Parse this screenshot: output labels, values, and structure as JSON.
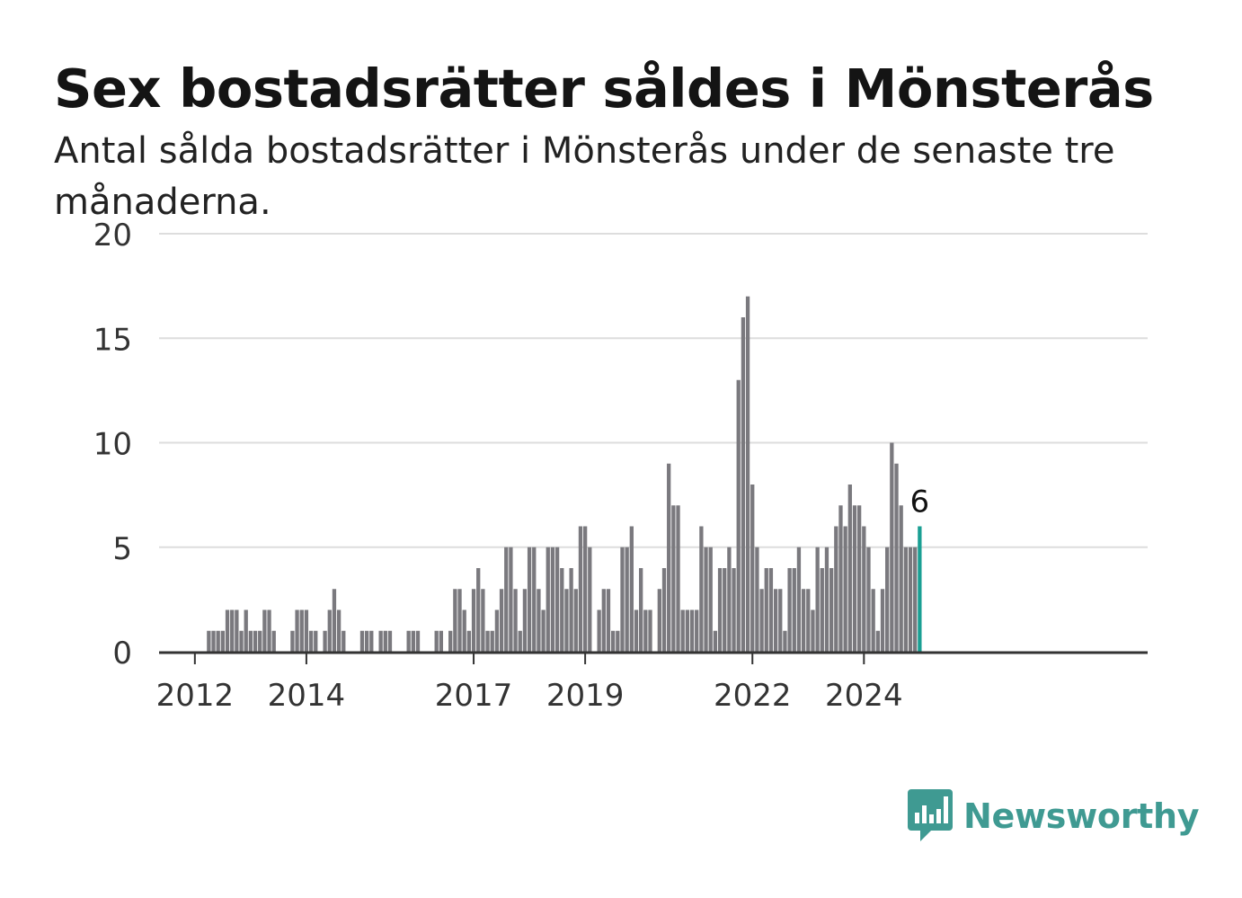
{
  "title": "Sex bostadsrätter såldes i Mönsterås",
  "subtitle": "Antal sålda bostadsrätter i Mönsterås under de senaste tre månaderna.",
  "brand": {
    "name": "Newsworthy",
    "color": "#3f9a92",
    "icon": "newsworthy-logo-icon"
  },
  "colors": {
    "bar": "#7a797e",
    "highlight": "#1a9f93",
    "grid": "#dddddd",
    "axis": "#333333",
    "text": "#333333"
  },
  "chart_data": {
    "type": "bar",
    "ylim": [
      0,
      20
    ],
    "yticks": [
      0,
      5,
      10,
      15,
      20
    ],
    "xticks": [
      {
        "label": "2012",
        "index": 7
      },
      {
        "label": "2014",
        "index": 31
      },
      {
        "label": "2017",
        "index": 67
      },
      {
        "label": "2019",
        "index": 91
      },
      {
        "label": "2022",
        "index": 127
      },
      {
        "label": "2024",
        "index": 151
      }
    ],
    "grid": true,
    "values": [
      0,
      0,
      0,
      0,
      0,
      0,
      0,
      0,
      0,
      0,
      1,
      1,
      1,
      1,
      2,
      2,
      2,
      1,
      2,
      1,
      1,
      1,
      2,
      2,
      1,
      0,
      0,
      0,
      1,
      2,
      2,
      2,
      1,
      1,
      0,
      1,
      2,
      3,
      2,
      1,
      0,
      0,
      0,
      1,
      1,
      1,
      0,
      1,
      1,
      1,
      0,
      0,
      0,
      1,
      1,
      1,
      0,
      0,
      0,
      1,
      1,
      0,
      1,
      3,
      3,
      2,
      1,
      3,
      4,
      3,
      1,
      1,
      2,
      3,
      5,
      5,
      3,
      1,
      3,
      5,
      5,
      3,
      2,
      5,
      5,
      5,
      4,
      3,
      4,
      3,
      6,
      6,
      5,
      0,
      2,
      3,
      3,
      1,
      1,
      5,
      5,
      6,
      2,
      4,
      2,
      2,
      0,
      3,
      4,
      9,
      7,
      7,
      2,
      2,
      2,
      2,
      6,
      5,
      5,
      1,
      4,
      4,
      5,
      4,
      13,
      16,
      17,
      8,
      5,
      3,
      4,
      4,
      3,
      3,
      1,
      4,
      4,
      5,
      3,
      3,
      2,
      5,
      4,
      5,
      4,
      6,
      7,
      6,
      8,
      7,
      7,
      6,
      5,
      3,
      1,
      3,
      5,
      10,
      9,
      7,
      5,
      5,
      5,
      6
    ],
    "highlight_index": 163,
    "highlight_label": "6"
  }
}
